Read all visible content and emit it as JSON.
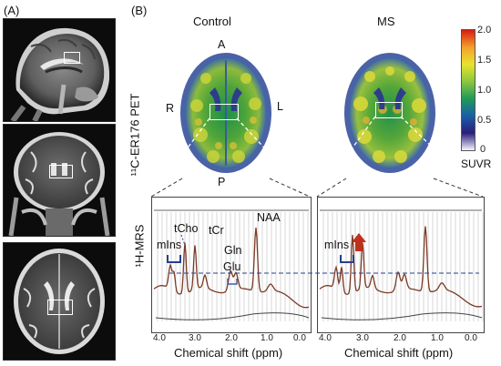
{
  "panel_a": {
    "label": "(A)"
  },
  "panel_b": {
    "label": "(B)",
    "pet_row_label": "¹¹C-ER176 PET",
    "mrs_row_label": "¹H-MRS",
    "control_title": "Control",
    "ms_title": "MS",
    "orientation": {
      "anterior": "A",
      "posterior": "P",
      "right": "R",
      "left": "L"
    }
  },
  "colorbar": {
    "ticks": [
      "2.0",
      "1.5",
      "1.0",
      "0.5",
      "0"
    ],
    "label": "SUVR",
    "colors": [
      "#d81c12",
      "#f3a02a",
      "#e8e32e",
      "#8bc63f",
      "#1f9a58",
      "#1a5ea8",
      "#2a1d7a",
      "#f5f5ff"
    ]
  },
  "spectra": {
    "control": {
      "peaks": {
        "mins": "mIns",
        "tcho": "tCho",
        "tcr": "tCr",
        "naa": "NAA",
        "gln": "Gln",
        "glu": "Glu"
      },
      "x_ticks": [
        "4.0",
        "3.0",
        "2.0",
        "1.0",
        "0.0"
      ],
      "xlabel": "Chemical shift (ppm)"
    },
    "ms": {
      "peaks": {
        "mins": "mIns"
      },
      "x_ticks": [
        "4.0",
        "3.0",
        "2.0",
        "1.0",
        "0.0"
      ],
      "xlabel": "Chemical shift (ppm)"
    }
  },
  "colors": {
    "spectrum": "#7a3a26",
    "dashed": "#27408b",
    "arrow": "#c0311b",
    "bracket": "#27408b"
  }
}
